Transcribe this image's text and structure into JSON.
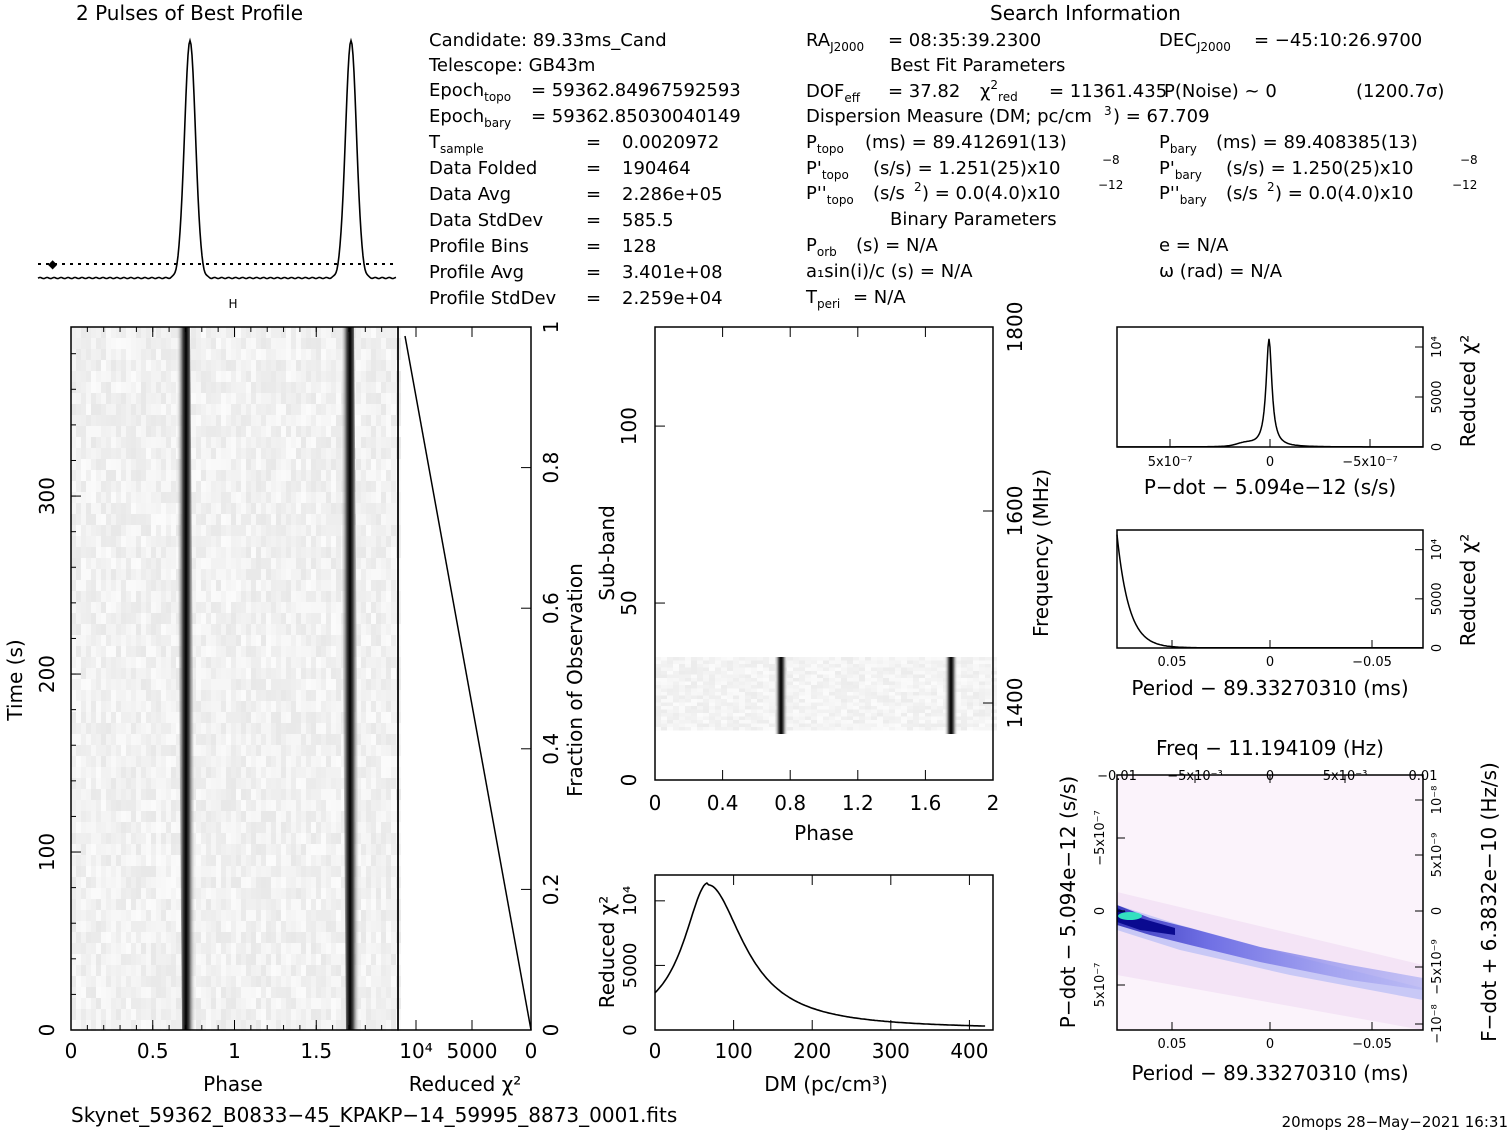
{
  "titles": {
    "profile": "2 Pulses of Best Profile",
    "search_info": "Search Information",
    "best_fit": "Best Fit Parameters",
    "binary": "Binary Parameters"
  },
  "candidate_info": {
    "candidate": "Candidate:  89.33ms_Cand",
    "telescope": "Telescope:  GB43m",
    "epoch_topo_val": "= 59362.84967592593",
    "epoch_bary_val": "= 59362.85030040149",
    "rows": [
      {
        "label": "T",
        "sub": "sample",
        "eq": "=",
        "value": "0.0020972"
      },
      {
        "label": "Data Folded",
        "sub": "",
        "eq": "=",
        "value": "190464"
      },
      {
        "label": "Data Avg",
        "sub": "",
        "eq": "=",
        "value": "2.286e+05"
      },
      {
        "label": "Data StdDev",
        "sub": "",
        "eq": "=",
        "value": "585.5"
      },
      {
        "label": "Profile Bins",
        "sub": "",
        "eq": "=",
        "value": "128"
      },
      {
        "label": "Profile Avg",
        "sub": "",
        "eq": "=",
        "value": "3.401e+08"
      },
      {
        "label": "Profile StdDev",
        "sub": "",
        "eq": "=",
        "value": "2.259e+04"
      }
    ]
  },
  "search_info": {
    "ra": "= 08:35:39.2300",
    "dec": "= −45:10:26.9700",
    "dof_val": "= 37.82",
    "chi_val": "= 11361.435",
    "pnoise": "P(Noise) ~ 0",
    "sigma": "(1200.7σ)",
    "dm_line_a": "Dispersion Measure (DM; pc/cm",
    "dm_line_b": ") = 67.709",
    "ptopo": "(ms) =  89.412691(13)",
    "pbary": "(ms) =  89.408385(13)",
    "pdot_topo": "(s/s) =  1.251(25)x10",
    "pdot_bary": "(s/s) =  1.250(25)x10",
    "pdot_exp": "−8",
    "pddot_topo_a": "(s/s",
    "pddot_topo_b": ") = 0.0(4.0)x10",
    "pddot_exp": "−12",
    "porb": "(s) = N/A",
    "a1sini": "a₁sin(i)/c (s) = N/A",
    "tperi": "= N/A",
    "ecc": "e = N/A",
    "omega": "ω (rad) = N/A"
  },
  "axes": {
    "time_label": "Time (s)",
    "phase_label": "Phase",
    "reduced_chi2": "Reduced χ²",
    "fraction_obs": "Fraction of Observation",
    "subband": "Sub-band",
    "frequency": "Frequency (MHz)",
    "dm_label": "DM (pc/cm³)",
    "pdot_label": "P−dot − 5.094e−12 (s/s)",
    "period_label": "Period − 89.33270310 (ms)",
    "freq_top": "Freq − 11.194109 (Hz)",
    "fdot_label": "F−dot + 6.3832e−10 (Hz/s)",
    "pdot_short": "P−dot − 5.094e−12 (s/s)"
  },
  "ticks": {
    "time": [
      "0",
      "100",
      "200",
      "300"
    ],
    "phase": [
      "0",
      "0.5",
      "1",
      "1.5"
    ],
    "chi_lower": [
      "10⁴",
      "5000",
      "0"
    ],
    "fraction": [
      "0",
      "0.2",
      "0.4",
      "0.6",
      "0.8",
      "1"
    ],
    "subband": [
      "0",
      "50",
      "100"
    ],
    "phase2": [
      "0",
      "0.4",
      "0.8",
      "1.2",
      "1.6",
      "2"
    ],
    "freq": [
      "1400",
      "1600",
      "1800"
    ],
    "dm": [
      "0",
      "100",
      "200",
      "300",
      "400"
    ],
    "chi_dm": [
      "0",
      "5000",
      "10⁴"
    ],
    "pdot_x": [
      "5x10⁻⁷",
      "0",
      "−5x10⁻⁷"
    ],
    "chi_small": [
      "0",
      "5000",
      "10⁴"
    ],
    "period_x": [
      "0.05",
      "0",
      "−0.05"
    ],
    "freq_top": [
      "−0.01",
      "−5x10⁻³",
      "0",
      "5x10⁻³",
      "0.01"
    ],
    "pdot_left": [
      "−5x10⁻⁷",
      "0",
      "5x10⁻⁷"
    ],
    "fdot_right": [
      "10⁻⁸",
      "5x10⁻⁹",
      "0",
      "−5x10⁻⁹",
      "−10⁻⁸"
    ]
  },
  "footer": {
    "filename": "Skynet_59362_B0833−45_KPAKP−14_59995_8873_0001.fits",
    "stamp": "20mops 28−May−2021 16:31"
  },
  "chart_data": [
    {
      "type": "line",
      "name": "profile",
      "x": [
        0,
        2
      ],
      "peaks_phase": [
        0.73,
        1.73
      ],
      "baseline_offset_fraction": 0.0
    },
    {
      "type": "heatmap",
      "name": "time-vs-phase",
      "xlim": [
        0,
        2
      ],
      "ylim": [
        0,
        395
      ],
      "pulse_phases": [
        0.71,
        1.71
      ]
    },
    {
      "type": "line",
      "name": "reduced-chi2-vs-time",
      "x": [
        12000,
        0
      ],
      "y": [
        0,
        1
      ]
    },
    {
      "type": "heatmap",
      "name": "subband-vs-phase",
      "xlim": [
        0,
        2
      ],
      "ylim": [
        0,
        128
      ],
      "signal_subbands": [
        15,
        35
      ],
      "pulse_phases": [
        0.75,
        1.75
      ]
    },
    {
      "type": "line",
      "name": "chi2-vs-dm",
      "xlim": [
        0,
        430
      ],
      "ylim": [
        0,
        12000
      ],
      "peak_dm": 67.709,
      "peak_chi2": 11361
    },
    {
      "type": "line",
      "name": "chi2-vs-pdot",
      "peak": 0,
      "ylim": [
        0,
        12000
      ]
    },
    {
      "type": "line",
      "name": "chi2-vs-period",
      "ylim": [
        0,
        12000
      ]
    },
    {
      "type": "heatmap",
      "name": "period-pdot-plane"
    }
  ]
}
